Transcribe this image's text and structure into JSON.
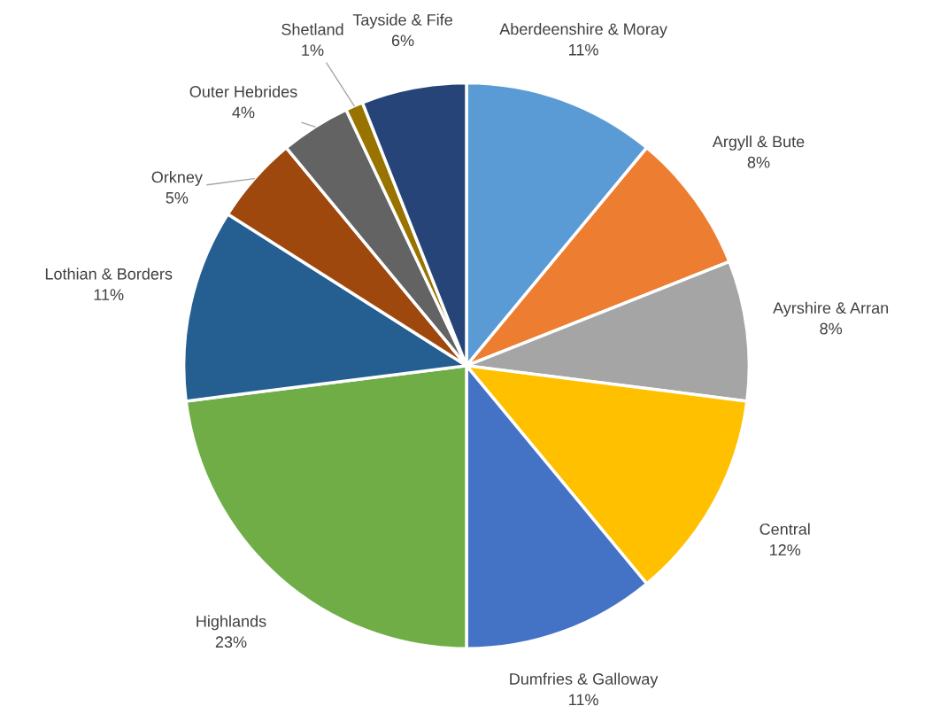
{
  "chart_data": {
    "type": "pie",
    "categories": [
      "Aberdeenshire & Moray",
      "Argyll & Bute",
      "Ayrshire & Arran",
      "Central",
      "Dumfries & Galloway",
      "Highlands",
      "Lothian & Borders",
      "Orkney",
      "Outer Hebrides",
      "Shetland",
      "Tayside & Fife"
    ],
    "values": [
      11,
      8,
      8,
      12,
      11,
      23,
      11,
      5,
      4,
      1,
      6
    ],
    "colors": [
      "#5b9bd5",
      "#ed7d31",
      "#a5a5a5",
      "#ffc000",
      "#4472c4",
      "#70ad47",
      "#255e91",
      "#9e480e",
      "#636363",
      "#997300",
      "#264478"
    ],
    "value_labels": [
      "11%",
      "8%",
      "8%",
      "12%",
      "11%",
      "23%",
      "11%",
      "5%",
      "4%",
      "1%",
      "6%"
    ],
    "legend": false
  }
}
